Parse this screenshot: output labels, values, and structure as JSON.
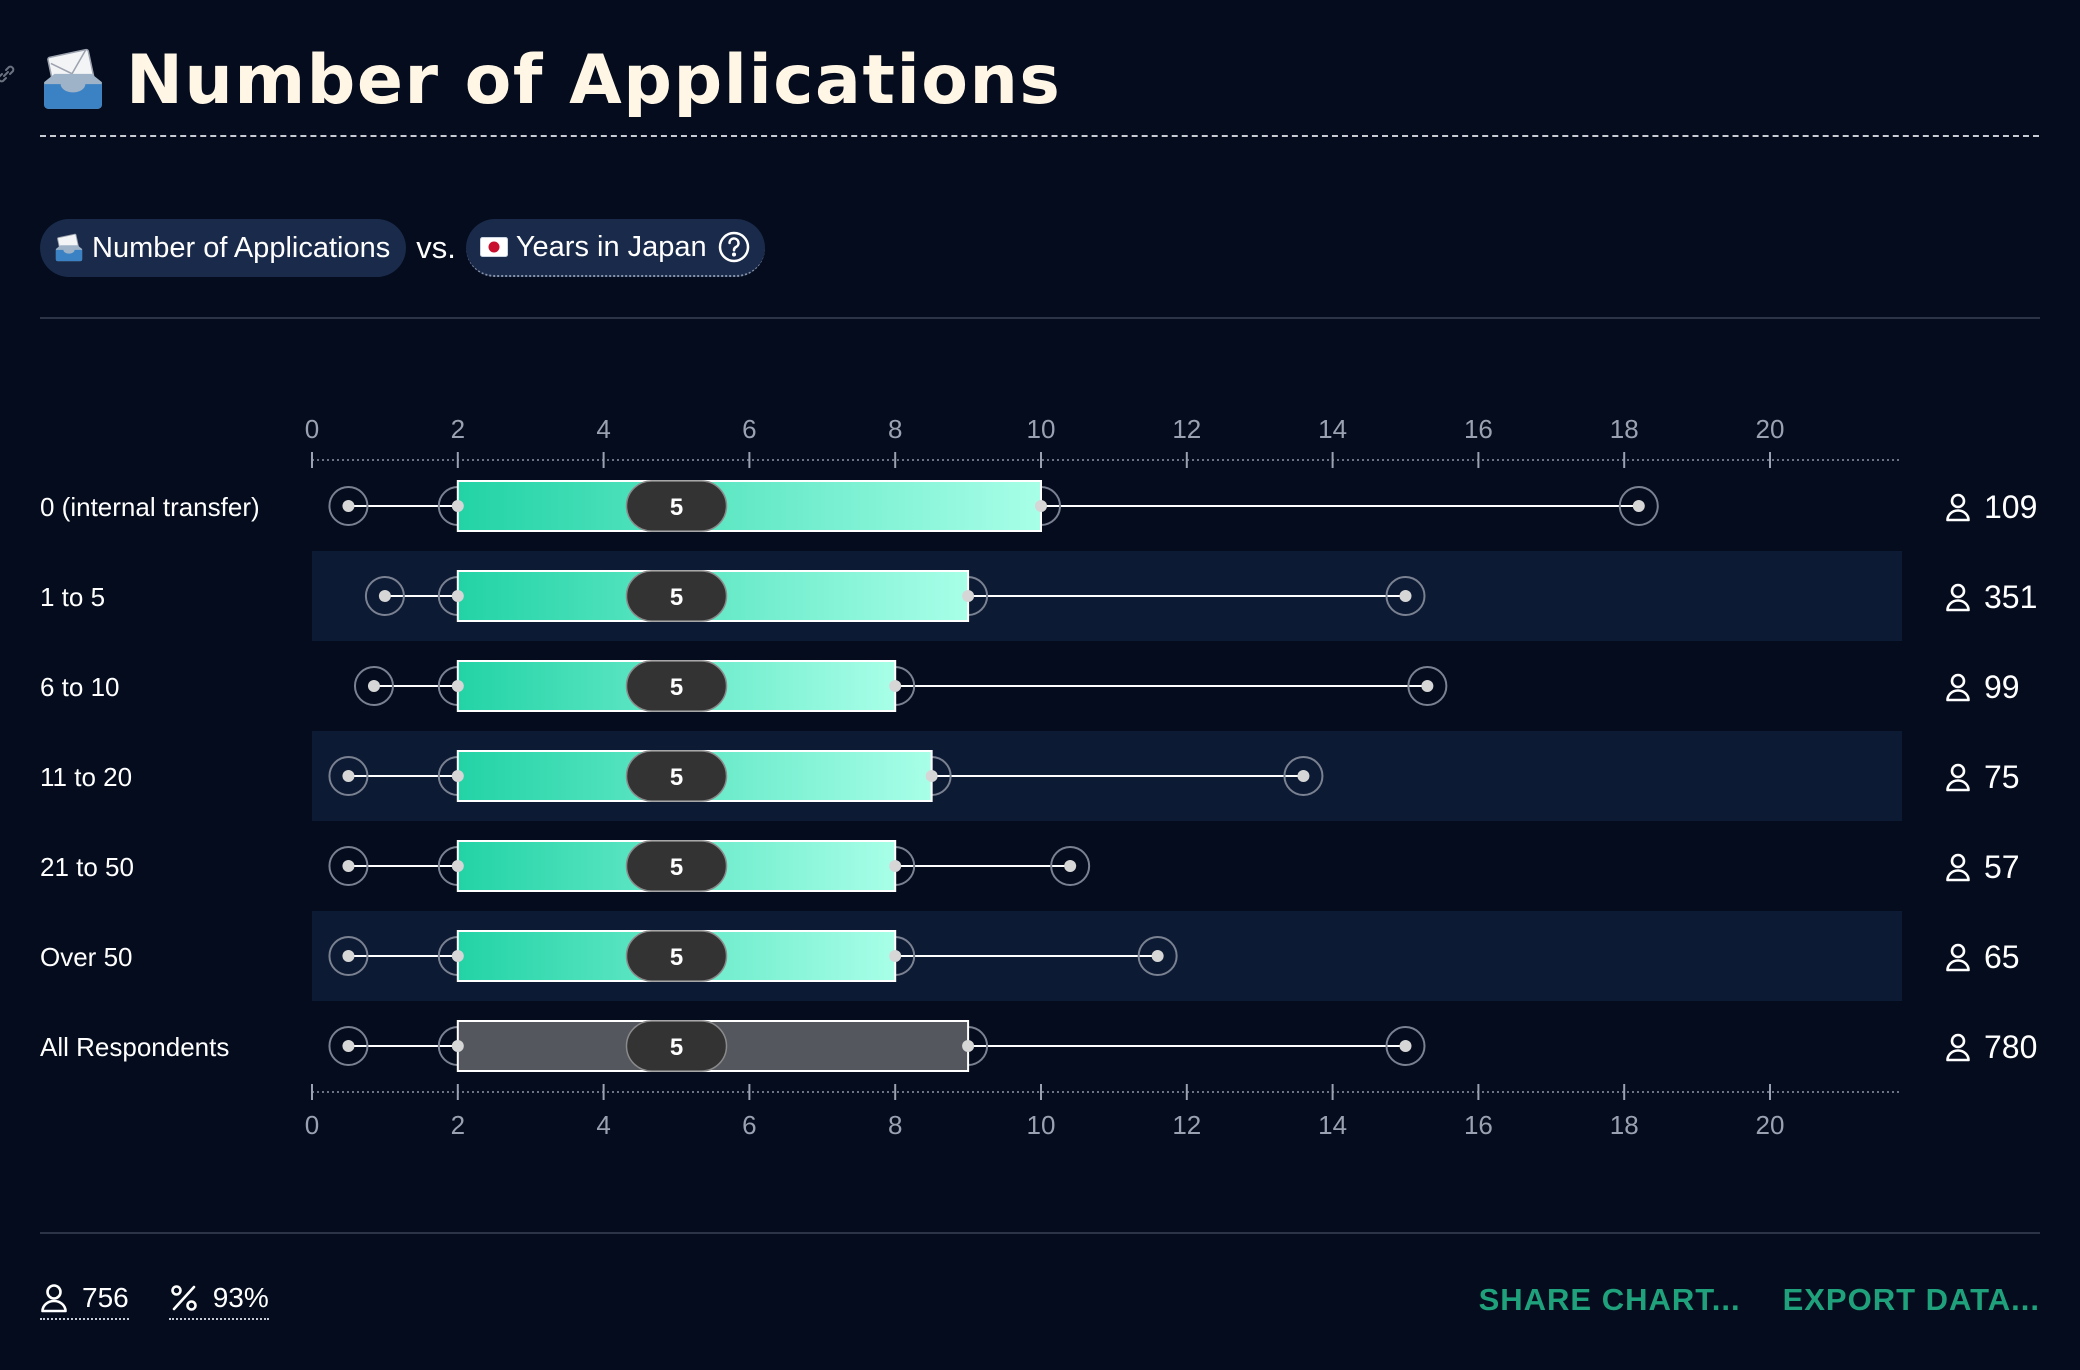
{
  "header": {
    "title": "Number of Applications",
    "title_icon": "inbox-envelope-icon"
  },
  "pills": {
    "primary": {
      "label": "Number of Applications",
      "icon": "inbox-envelope-icon"
    },
    "vs": "vs.",
    "secondary": {
      "label": "Years in Japan",
      "icon": "japan-flag-icon",
      "help_icon": "question-circle-icon"
    }
  },
  "chart_data": {
    "type": "boxplot",
    "x_ticks": [
      0,
      2,
      4,
      6,
      8,
      10,
      12,
      14,
      16,
      18,
      20
    ],
    "xlim": [
      0,
      20
    ],
    "categories": [
      "0 (internal transfer)",
      "1 to 5",
      "6 to 10",
      "11 to 20",
      "21 to 50",
      "Over 50",
      "All Respondents"
    ],
    "rows": [
      {
        "label": "0 (internal transfer)",
        "min": 0.5,
        "q1": 2,
        "median": 5,
        "q3": 10,
        "max": 18.2,
        "count": "109"
      },
      {
        "label": "1 to 5",
        "min": 1,
        "q1": 2,
        "median": 5,
        "q3": 9,
        "max": 15,
        "count": "351"
      },
      {
        "label": "6 to 10",
        "min": 0.85,
        "q1": 2,
        "median": 5,
        "q3": 8,
        "max": 15.3,
        "count": "99"
      },
      {
        "label": "11 to 20",
        "min": 0.5,
        "q1": 2,
        "median": 5,
        "q3": 8.5,
        "max": 13.6,
        "count": "75"
      },
      {
        "label": "21 to 50",
        "min": 0.5,
        "q1": 2,
        "median": 5,
        "q3": 8,
        "max": 10.4,
        "count": "57"
      },
      {
        "label": "Over 50",
        "min": 0.5,
        "q1": 2,
        "median": 5,
        "q3": 8,
        "max": 11.6,
        "count": "65"
      },
      {
        "label": "All Respondents",
        "min": 0.5,
        "q1": 2,
        "median": 5,
        "q3": 9,
        "max": 15,
        "count": "780",
        "aggregate": true
      }
    ],
    "colors": {
      "box_start": "#22d3a6",
      "box_end": "#a8ffe8",
      "aggregate_box": "#55575f",
      "median_pill": "#333333",
      "band": "#0d1a34"
    }
  },
  "footer": {
    "respondents": "756",
    "percent": "93%",
    "share_label": "SHARE CHART...",
    "export_label": "EXPORT DATA..."
  }
}
